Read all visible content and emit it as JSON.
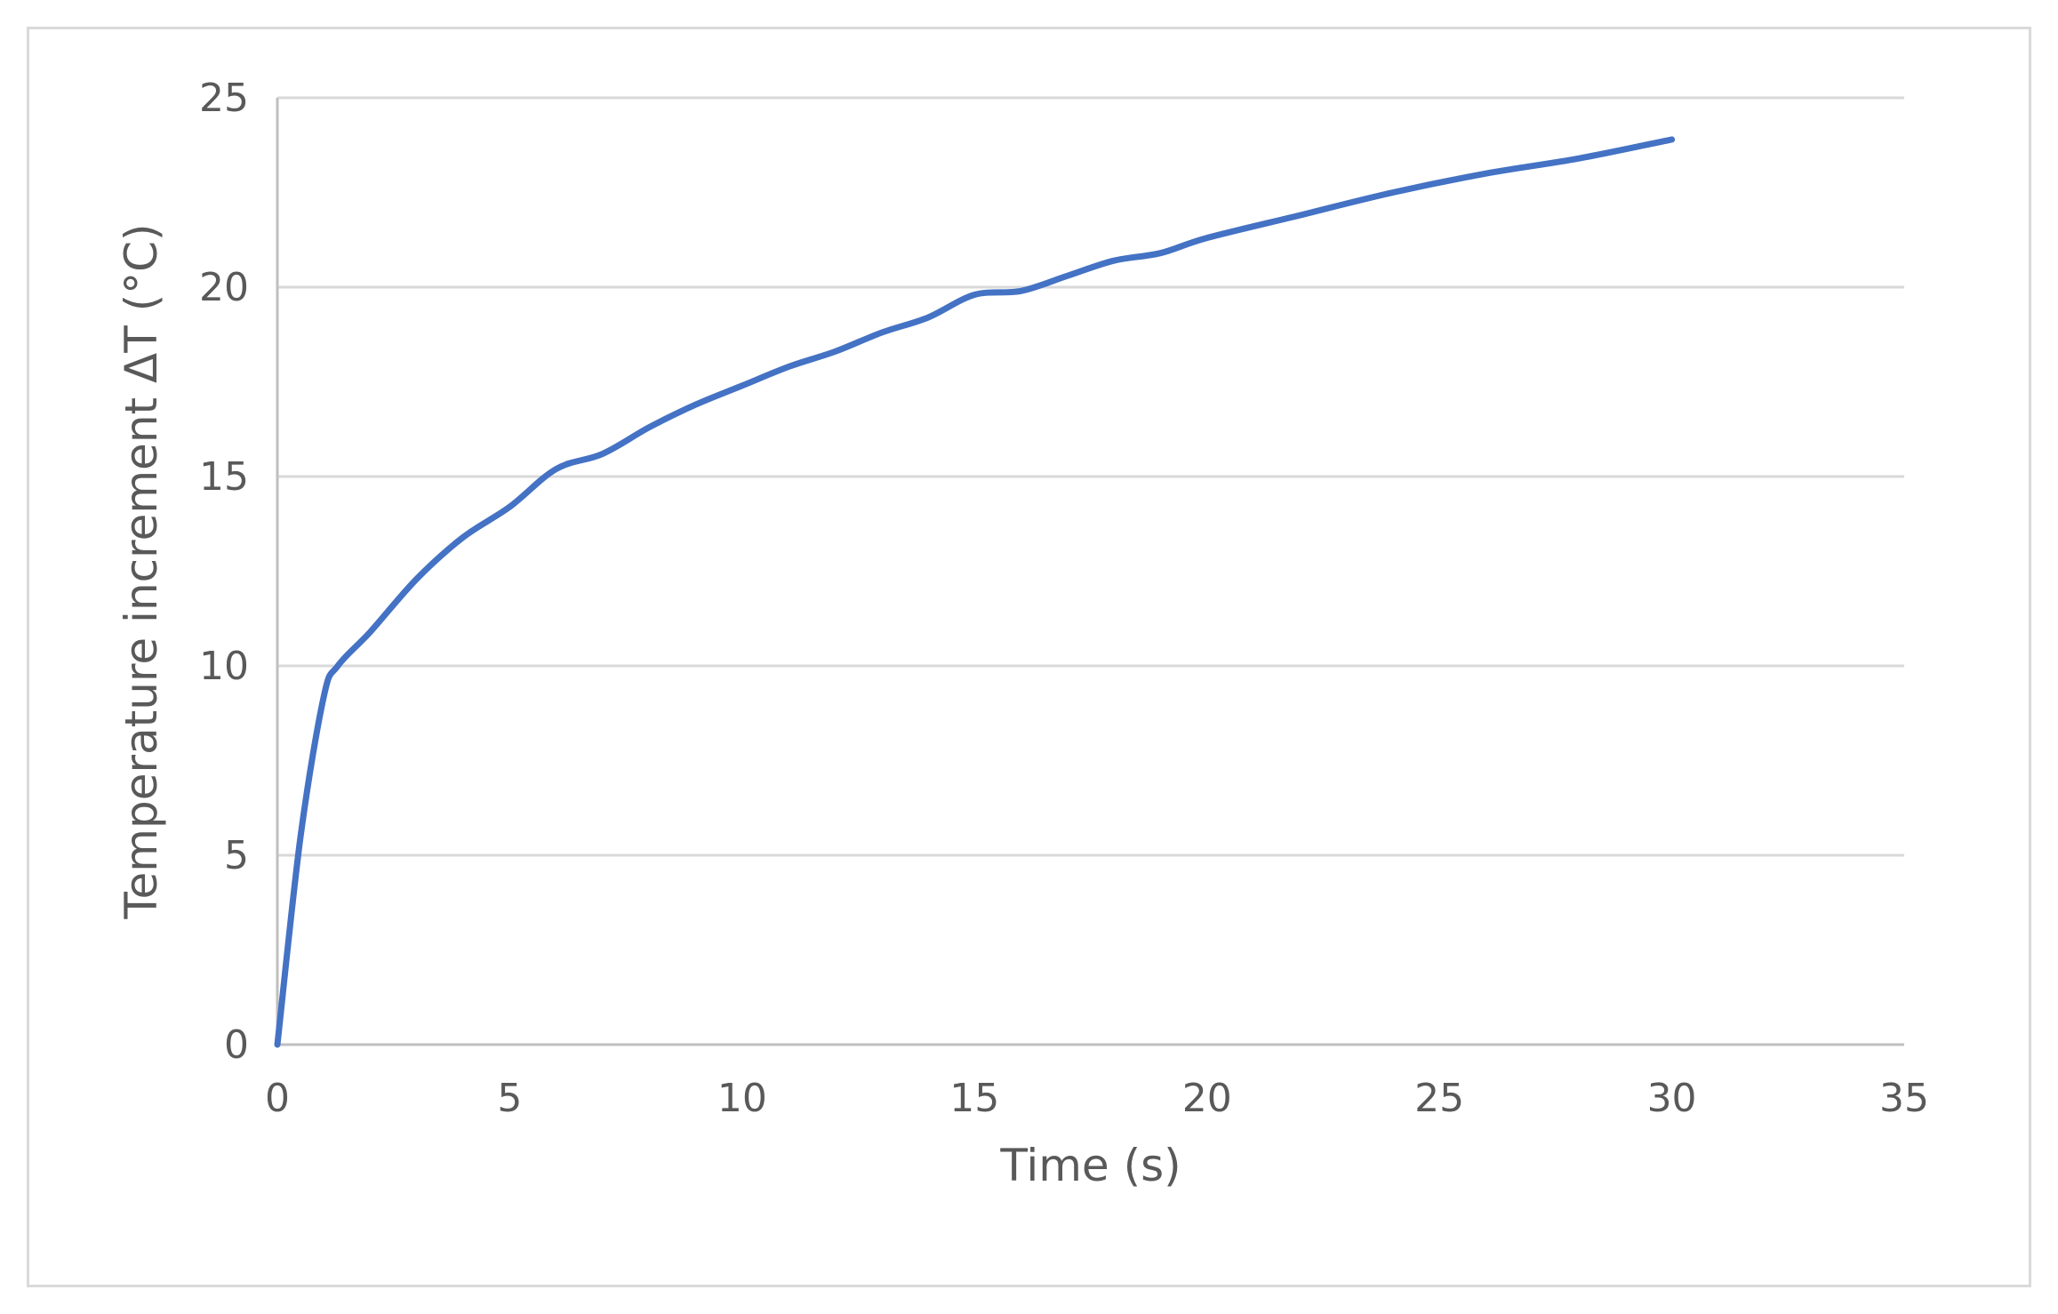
{
  "chart_data": {
    "type": "line",
    "title": "",
    "xlabel": "Time (s)",
    "ylabel": "Temperature increment ΔT (°C)",
    "xlim": [
      0,
      35
    ],
    "ylim": [
      0,
      25
    ],
    "x_ticks": [
      "0",
      "5",
      "10",
      "15",
      "20",
      "25",
      "30",
      "35"
    ],
    "y_ticks": [
      "0",
      "5",
      "10",
      "15",
      "20",
      "25"
    ],
    "grid": "horizontal",
    "legend": "none",
    "series": [
      {
        "color": "#4472c4",
        "x": [
          0,
          0.5,
          1,
          1.3,
          2,
          3,
          4,
          5,
          6,
          7,
          8,
          9,
          10,
          11,
          12,
          13,
          14,
          15,
          16,
          17,
          18,
          19,
          20,
          22,
          24,
          26,
          28,
          30
        ],
        "y": [
          0,
          5.5,
          9.2,
          10.0,
          10.9,
          12.3,
          13.4,
          14.2,
          15.2,
          15.6,
          16.3,
          16.9,
          17.4,
          17.9,
          18.3,
          18.8,
          19.2,
          19.8,
          19.9,
          20.3,
          20.7,
          20.9,
          21.3,
          21.9,
          22.5,
          23.0,
          23.4,
          23.9
        ]
      }
    ]
  }
}
